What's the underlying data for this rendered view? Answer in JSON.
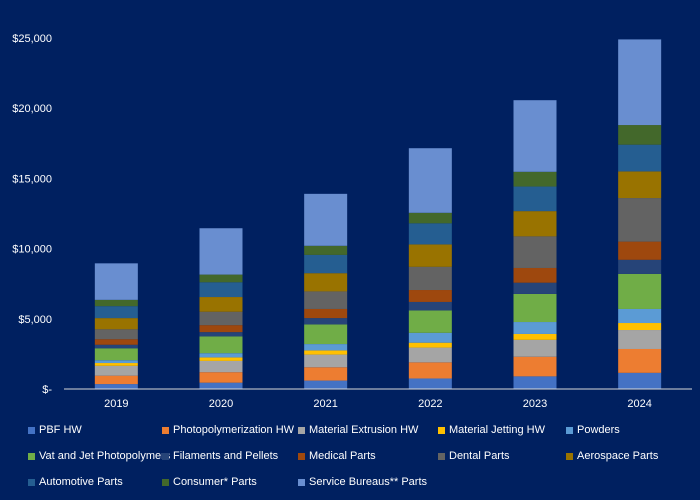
{
  "chart_data": {
    "type": "bar",
    "stacked": true,
    "categories": [
      "2019",
      "2020",
      "2021",
      "2022",
      "2023",
      "2024"
    ],
    "ylim": [
      0,
      25000
    ],
    "yticks": [
      0,
      5000,
      10000,
      15000,
      20000,
      25000
    ],
    "ytick_labels": [
      "$-",
      "$5,000",
      "$10,000",
      "$15,000",
      "$20,000",
      "$25,000"
    ],
    "grid": false,
    "legend_position": "bottom",
    "series": [
      {
        "name": "PBF HW",
        "color": "#4472C4",
        "values": [
          350,
          450,
          600,
          750,
          900,
          1150
        ]
      },
      {
        "name": "Photopolymerization HW",
        "color": "#ED7D31",
        "values": [
          600,
          750,
          950,
          1150,
          1400,
          1700
        ]
      },
      {
        "name": "Material Extrusion HW",
        "color": "#A5A5A5",
        "values": [
          700,
          800,
          900,
          1050,
          1200,
          1350
        ]
      },
      {
        "name": "Material Jetting HW",
        "color": "#FFC000",
        "values": [
          200,
          250,
          300,
          350,
          420,
          500
        ]
      },
      {
        "name": "Powders",
        "color": "#5B9BD5",
        "values": [
          200,
          300,
          450,
          700,
          850,
          1000
        ]
      },
      {
        "name": "Vat and Jet Photopolymers",
        "color": "#70AD47",
        "values": [
          850,
          1200,
          1400,
          1600,
          2000,
          2500
        ]
      },
      {
        "name": "Filaments and Pellets",
        "color": "#264478",
        "values": [
          250,
          300,
          450,
          600,
          800,
          1000
        ]
      },
      {
        "name": "Medical Parts",
        "color": "#9E480E",
        "values": [
          400,
          500,
          650,
          850,
          1050,
          1300
        ]
      },
      {
        "name": "Dental Parts",
        "color": "#636363",
        "values": [
          700,
          950,
          1250,
          1650,
          2250,
          3100
        ]
      },
      {
        "name": "Aerospace Parts",
        "color": "#997300",
        "values": [
          800,
          1050,
          1300,
          1600,
          1800,
          1900
        ]
      },
      {
        "name": "Automotive Parts",
        "color": "#255E91",
        "values": [
          850,
          1050,
          1300,
          1500,
          1750,
          1900
        ]
      },
      {
        "name": "Consumer* Parts",
        "color": "#43682B",
        "values": [
          450,
          550,
          650,
          750,
          1050,
          1400
        ]
      },
      {
        "name": "Service Bureaus** Parts",
        "color": "#698ED0",
        "values": [
          2600,
          3300,
          3700,
          4600,
          5100,
          6100
        ]
      }
    ]
  }
}
